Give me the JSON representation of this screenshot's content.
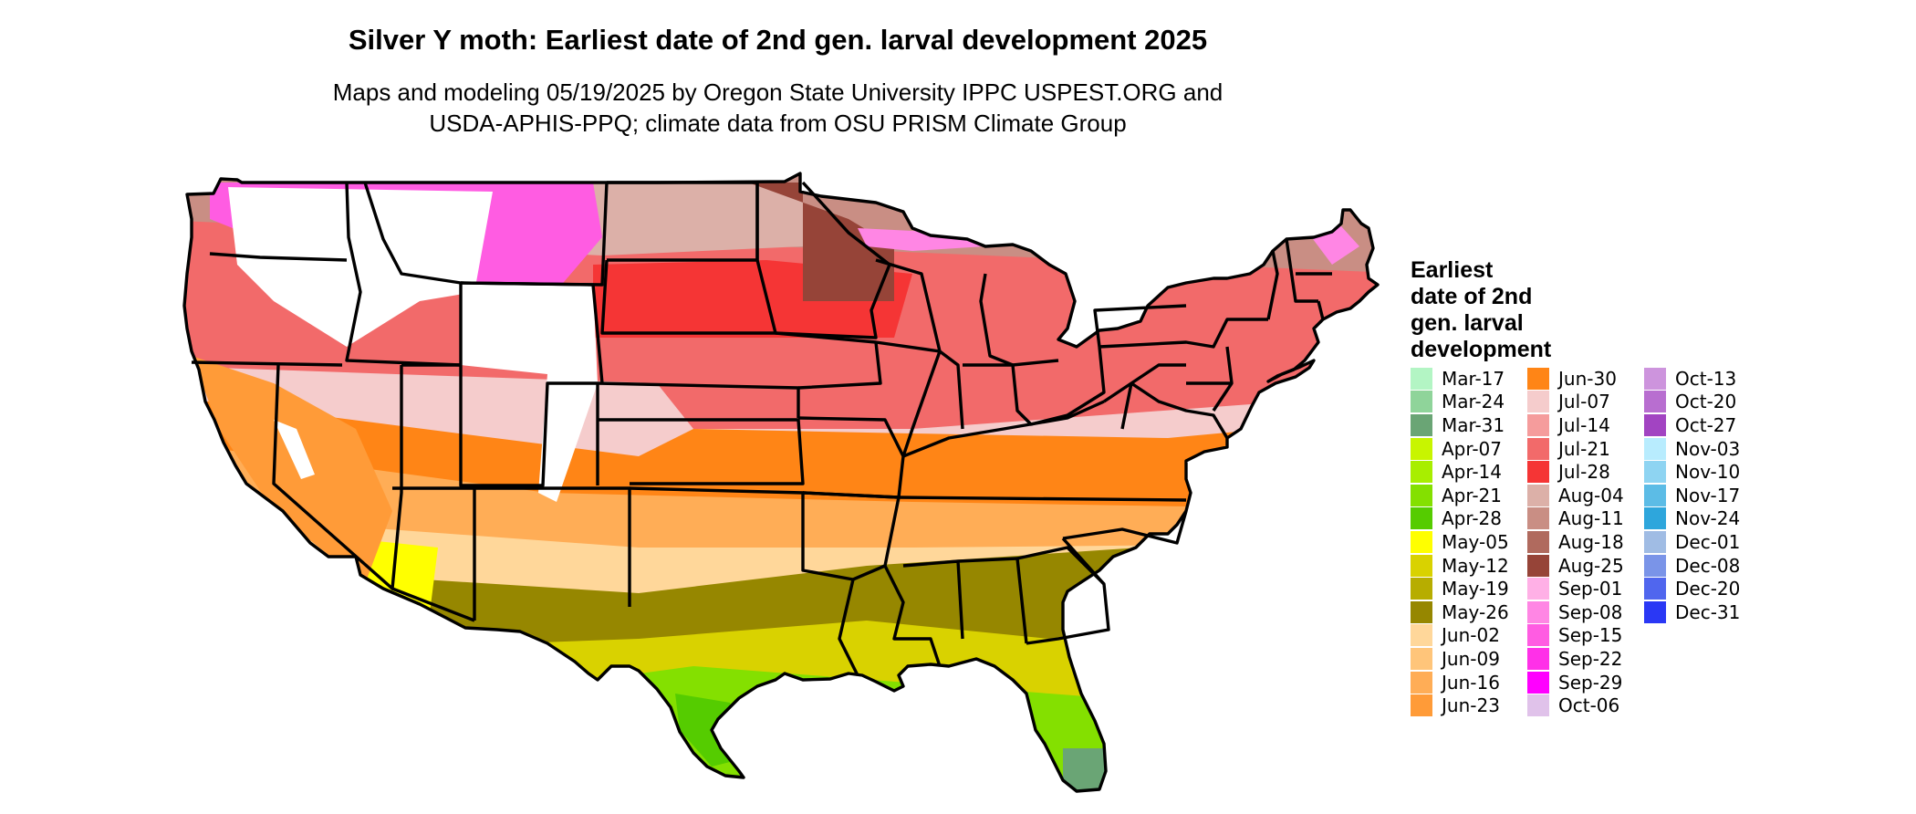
{
  "title": "Silver Y moth: Earliest date of 2nd gen. larval development 2025",
  "subtitle": {
    "line1": "Maps and modeling 05/19/2025 by Oregon State University IPPC USPEST.ORG and",
    "line2": "USDA-APHIS-PPQ; climate data from OSU PRISM Climate Group"
  },
  "legend": {
    "title_lines": [
      "Earliest",
      "date of 2nd",
      "gen. larval",
      "development"
    ],
    "entries": [
      {
        "label": "Mar-17",
        "color": "#b3f5c4"
      },
      {
        "label": "Mar-24",
        "color": "#8fd49a"
      },
      {
        "label": "Mar-31",
        "color": "#6aa575"
      },
      {
        "label": "Apr-07",
        "color": "#c8f500"
      },
      {
        "label": "Apr-14",
        "color": "#a8ee00"
      },
      {
        "label": "Apr-21",
        "color": "#84e000"
      },
      {
        "label": "Apr-28",
        "color": "#55cc00"
      },
      {
        "label": "May-05",
        "color": "#ffff00"
      },
      {
        "label": "May-12",
        "color": "#d9d200"
      },
      {
        "label": "May-19",
        "color": "#b7ad00"
      },
      {
        "label": "May-26",
        "color": "#968700"
      },
      {
        "label": "Jun-02",
        "color": "#ffd79a"
      },
      {
        "label": "Jun-09",
        "color": "#ffc57a"
      },
      {
        "label": "Jun-16",
        "color": "#ffad56"
      },
      {
        "label": "Jun-23",
        "color": "#ff9b38"
      },
      {
        "label": "Jun-30",
        "color": "#ff8516"
      },
      {
        "label": "Jul-07",
        "color": "#f5cccc"
      },
      {
        "label": "Jul-14",
        "color": "#f59c9c"
      },
      {
        "label": "Jul-21",
        "color": "#f26a6a"
      },
      {
        "label": "Jul-28",
        "color": "#f53535"
      },
      {
        "label": "Aug-04",
        "color": "#dcb0a8"
      },
      {
        "label": "Aug-11",
        "color": "#c98e84"
      },
      {
        "label": "Aug-18",
        "color": "#b06a5e"
      },
      {
        "label": "Aug-25",
        "color": "#964438"
      },
      {
        "label": "Sep-01",
        "color": "#ffb0e6"
      },
      {
        "label": "Sep-08",
        "color": "#ff86e4"
      },
      {
        "label": "Sep-15",
        "color": "#ff5ce2"
      },
      {
        "label": "Sep-22",
        "color": "#ff30e8"
      },
      {
        "label": "Sep-29",
        "color": "#ff00ff"
      },
      {
        "label": "Oct-06",
        "color": "#e0c2ea"
      },
      {
        "label": "Oct-13",
        "color": "#cd94dd"
      },
      {
        "label": "Oct-20",
        "color": "#b86ed0"
      },
      {
        "label": "Oct-27",
        "color": "#a244c2"
      },
      {
        "label": "Nov-03",
        "color": "#b8ecfe"
      },
      {
        "label": "Nov-10",
        "color": "#8ed4f2"
      },
      {
        "label": "Nov-17",
        "color": "#5cbce6"
      },
      {
        "label": "Nov-24",
        "color": "#2ea6dc"
      },
      {
        "label": "Dec-01",
        "color": "#a0bce4"
      },
      {
        "label": "Dec-08",
        "color": "#7a94e8"
      },
      {
        "label": "Dec-20",
        "color": "#5066ee"
      },
      {
        "label": "Dec-31",
        "color": "#2a38f5"
      }
    ]
  }
}
